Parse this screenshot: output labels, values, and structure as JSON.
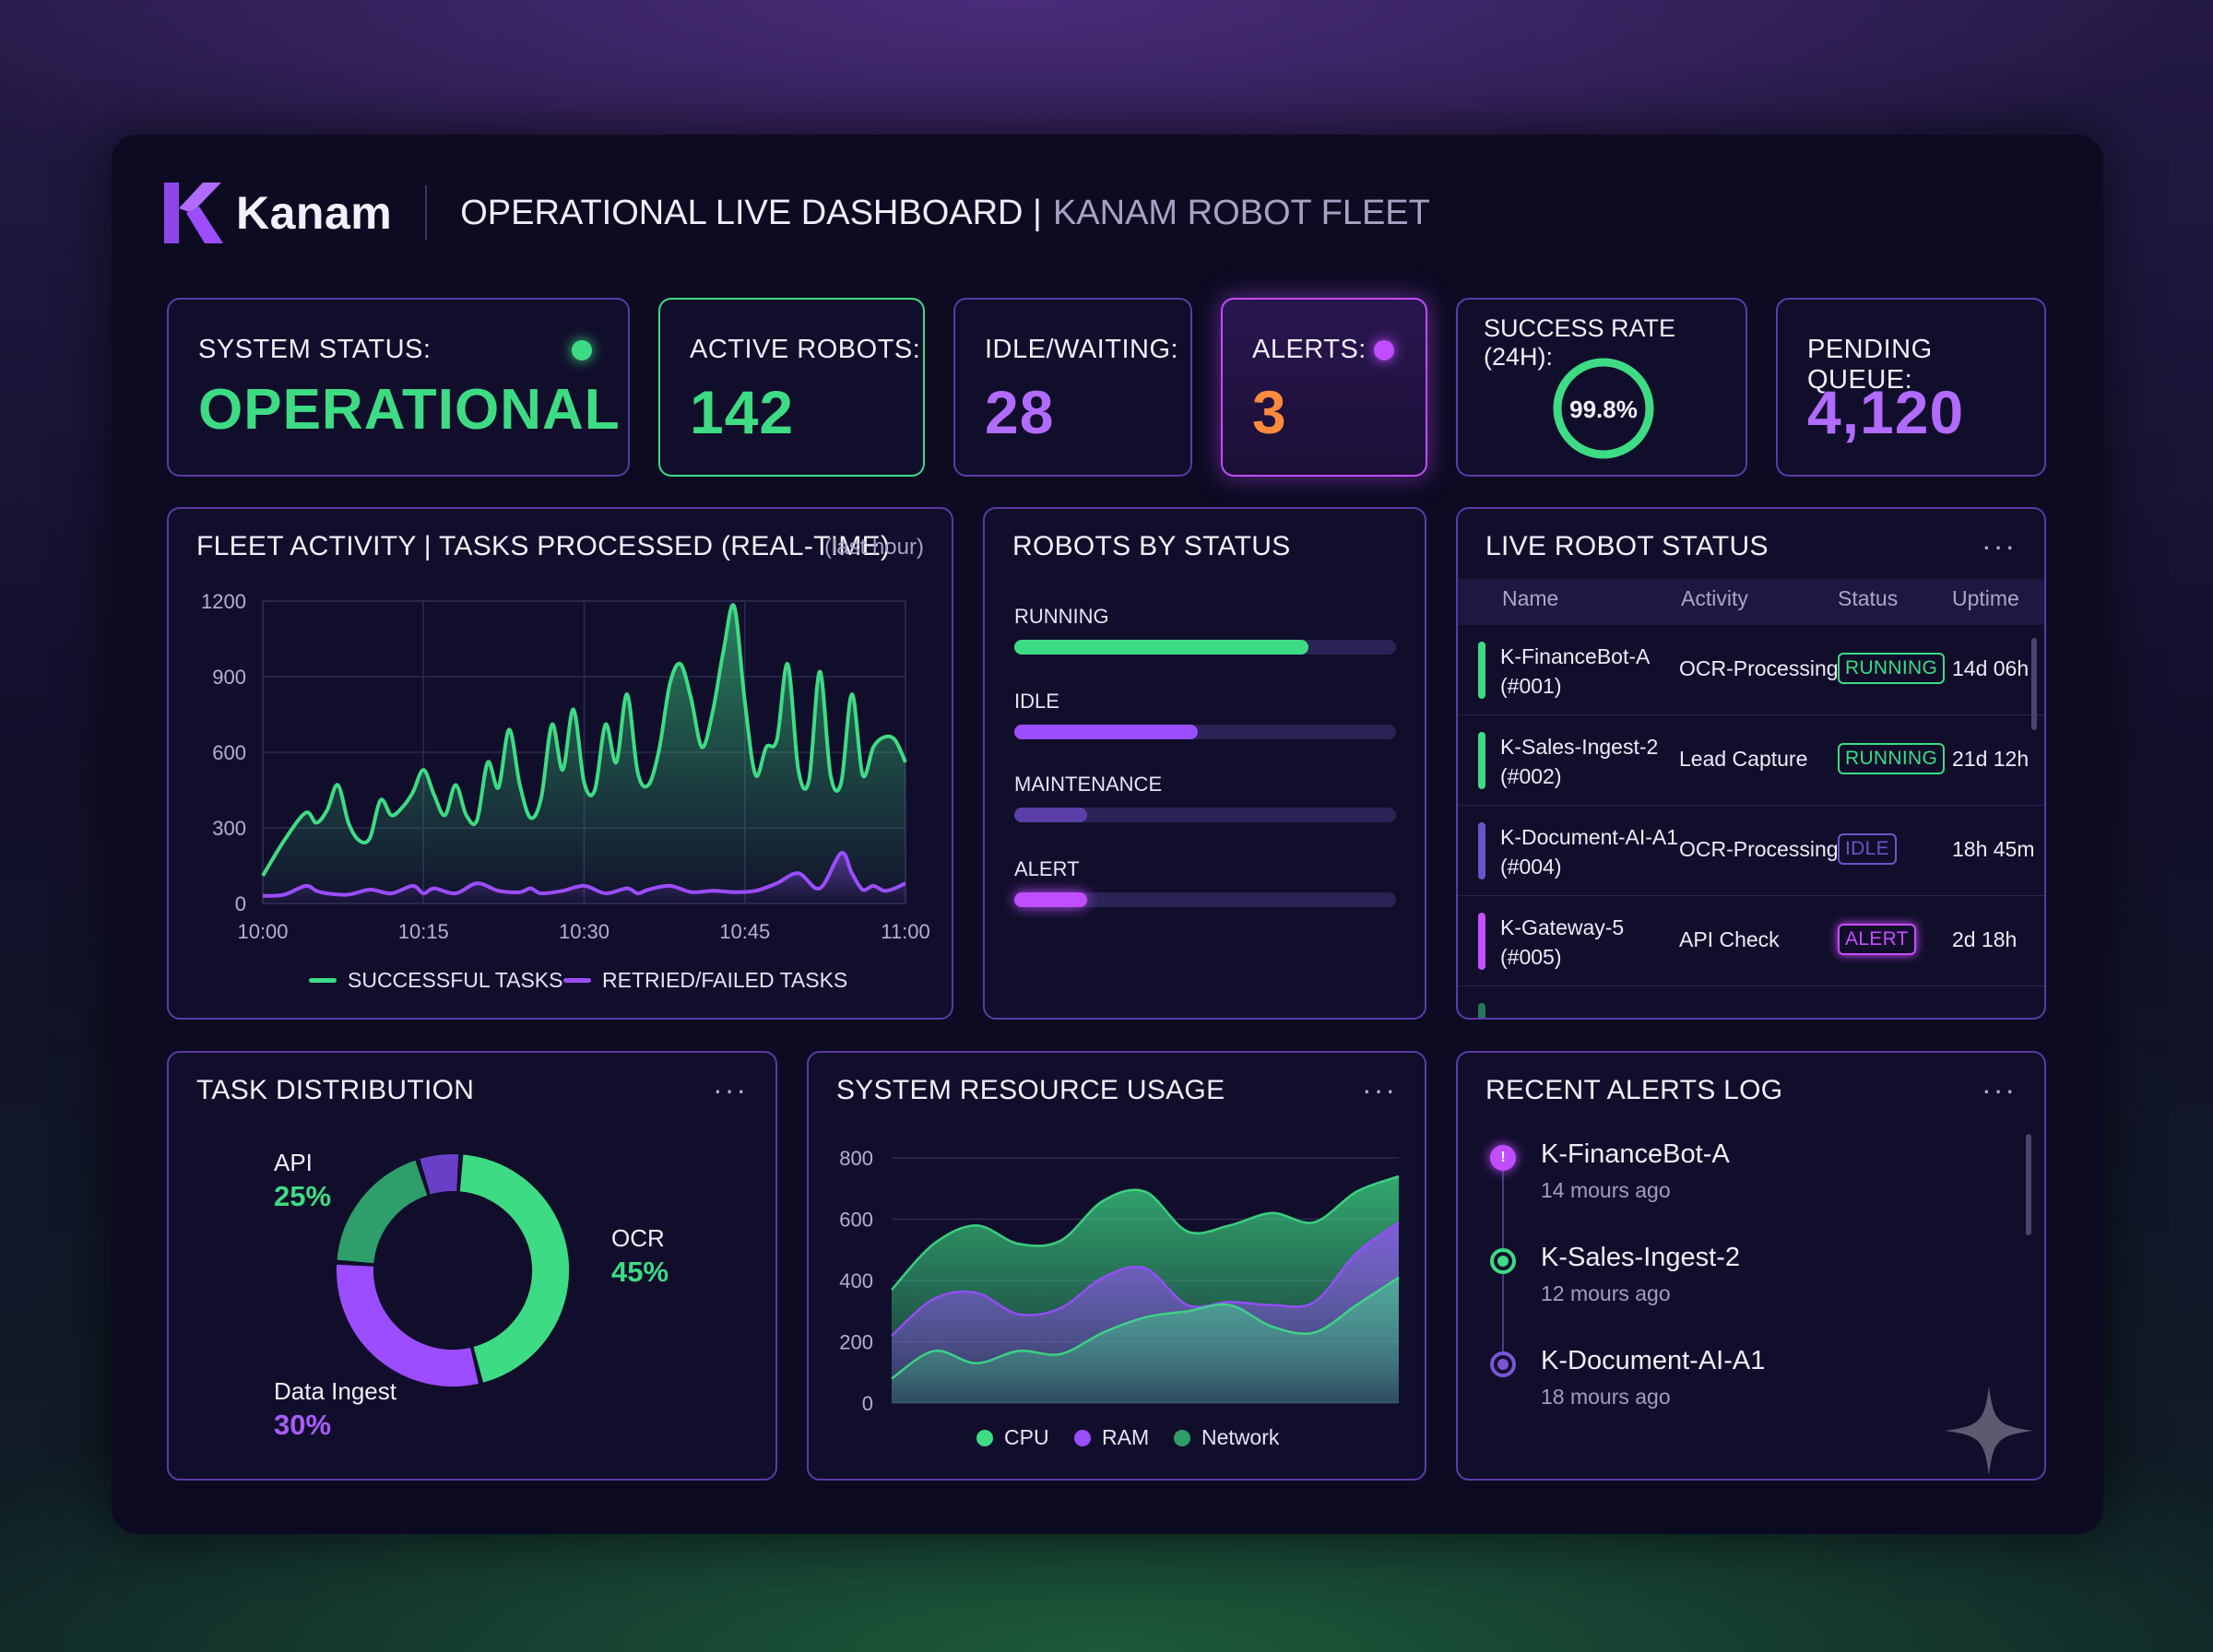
{
  "brand": {
    "name": "Kanam",
    "title_main": "OPERATIONAL LIVE DASHBOARD |",
    "title_sub": "KANAM ROBOT FLEET"
  },
  "kpis": {
    "system_status": {
      "label": "SYSTEM STATUS:",
      "value": "OPERATIONAL",
      "color": "#3ddc84"
    },
    "active_robots": {
      "label": "ACTIVE ROBOTS:",
      "value": "142",
      "color": "#3ddc84"
    },
    "idle": {
      "label": "IDLE/WAITING:",
      "value": "28",
      "color": "#b26bff"
    },
    "alerts": {
      "label": "ALERTS:",
      "value": "3",
      "color": "#ff8a3d"
    },
    "success": {
      "label": "SUCCESS RATE (24H):",
      "value": "99.8%",
      "fraction": 0.998
    },
    "pending": {
      "label": "PENDING QUEUE:",
      "value": "4,120",
      "color": "#b26bff"
    }
  },
  "fleet": {
    "title": "FLEET ACTIVITY | TASKS PROCESSED (REAL-TIME)",
    "note": "(last hour)",
    "legend_success": "SUCCESSFUL TASKS",
    "legend_failed": "RETRIED/FAILED TASKS"
  },
  "robots_by_status": {
    "title": "ROBOTS BY STATUS",
    "bars": [
      {
        "label": "RUNNING",
        "fraction": 0.77,
        "color": "#3ddc84"
      },
      {
        "label": "IDLE",
        "fraction": 0.48,
        "color": "#9b4dff"
      },
      {
        "label": "MAINTENANCE",
        "fraction": 0.19,
        "color": "#5b3fa8"
      },
      {
        "label": "ALERT",
        "fraction": 0.19,
        "color": "#c04dff"
      }
    ]
  },
  "live": {
    "title": "LIVE ROBOT STATUS",
    "more": "···",
    "headers": {
      "name": "Name",
      "activity": "Activity",
      "status": "Status",
      "uptime": "Uptime"
    },
    "rows": [
      {
        "name1": "K-FinanceBot-A",
        "name2": "(#001)",
        "activity": "OCR-Processing",
        "status": "RUNNING",
        "uptime": "14d 06h",
        "color": "#3ddc84"
      },
      {
        "name1": "K-Sales-Ingest-2",
        "name2": "(#002)",
        "activity": "Lead Capture",
        "status": "RUNNING",
        "uptime": "21d 12h",
        "color": "#3ddc84"
      },
      {
        "name1": "K-Document-AI-A1",
        "name2": "(#004)",
        "activity": "OCR-Processing",
        "status": "IDLE",
        "uptime": "18h 45m",
        "color": "#6a55c8"
      },
      {
        "name1": "K-Gateway-5",
        "name2": "(#005)",
        "activity": "API Check",
        "status": "ALERT",
        "uptime": "2d 18h",
        "color": "#c84dff"
      }
    ]
  },
  "task_dist": {
    "title": "TASK DISTRIBUTION",
    "more": "···",
    "slices": [
      {
        "label": "OCR",
        "value": 45,
        "pct": "45%",
        "color": "#3ddc84"
      },
      {
        "label": "Data Ingest",
        "value": 30,
        "pct": "30%",
        "color": "#9b4dff"
      },
      {
        "label": "API",
        "value": 25,
        "pct": "25%",
        "color": "#3ddc84"
      }
    ]
  },
  "resource": {
    "title": "SYSTEM RESOURCE USAGE",
    "more": "···",
    "legend": [
      "CPU",
      "RAM",
      "Network"
    ]
  },
  "alerts_log": {
    "title": "RECENT ALERTS LOG",
    "more": "···",
    "items": [
      {
        "name": "K-FinanceBot-A",
        "time": "14 mours ago",
        "color": "#c04dff"
      },
      {
        "name": "K-Sales-Ingest-2",
        "time": "12 mours ago",
        "color": "#3ddc84"
      },
      {
        "name": "K-Document-AI-A1",
        "time": "18 mours ago",
        "color": "#7a55d8"
      }
    ]
  },
  "chart_data": [
    {
      "type": "area",
      "title": "FLEET ACTIVITY | TASKS PROCESSED (REAL-TIME)",
      "xlabel": "",
      "ylabel": "",
      "xlim": [
        0,
        60
      ],
      "ylim": [
        0,
        1200
      ],
      "x_ticks": [
        "10:00",
        "10:15",
        "10:30",
        "10:45",
        "11:00"
      ],
      "y_ticks": [
        "0",
        "300",
        "600",
        "900",
        "1200"
      ],
      "grid": true,
      "series": [
        {
          "name": "SUCCESSFUL TASKS",
          "color": "#3ddc84",
          "x": [
            0,
            2,
            4,
            5,
            6,
            7,
            8,
            9,
            10,
            11,
            12,
            13,
            14,
            15,
            16,
            17,
            18,
            19,
            20,
            21,
            22,
            23,
            24,
            25,
            26,
            27,
            28,
            29,
            30,
            31,
            32,
            33,
            34,
            35,
            36,
            37,
            38,
            39,
            40,
            41,
            42,
            43,
            44,
            45,
            46,
            47,
            48,
            49,
            50,
            51,
            52,
            53,
            54,
            55,
            56,
            57,
            58,
            59,
            60
          ],
          "y": [
            110,
            250,
            360,
            320,
            370,
            470,
            320,
            250,
            260,
            410,
            350,
            380,
            440,
            530,
            430,
            350,
            470,
            350,
            330,
            560,
            460,
            690,
            470,
            340,
            420,
            710,
            530,
            770,
            480,
            450,
            710,
            560,
            830,
            520,
            470,
            610,
            870,
            950,
            810,
            620,
            760,
            1000,
            1180,
            800,
            510,
            620,
            650,
            950,
            530,
            490,
            920,
            510,
            480,
            830,
            510,
            620,
            660,
            650,
            560
          ]
        },
        {
          "name": "RETRIED/FAILED TASKS",
          "color": "#9b4dff",
          "x": [
            0,
            2,
            4,
            5,
            6,
            8,
            10,
            12,
            14,
            15,
            16,
            18,
            20,
            22,
            24,
            25,
            26,
            28,
            30,
            32,
            34,
            35,
            36,
            38,
            40,
            42,
            44,
            46,
            48,
            50,
            52,
            54,
            55,
            56,
            57,
            58,
            59,
            60
          ],
          "y": [
            30,
            35,
            70,
            50,
            40,
            35,
            55,
            40,
            70,
            40,
            60,
            40,
            80,
            50,
            45,
            60,
            40,
            50,
            70,
            40,
            60,
            40,
            55,
            70,
            45,
            50,
            45,
            50,
            80,
            120,
            60,
            200,
            120,
            55,
            70,
            50,
            60,
            80
          ]
        }
      ]
    },
    {
      "type": "pie",
      "title": "TASK DISTRIBUTION",
      "categories": [
        "OCR",
        "Data Ingest",
        "API"
      ],
      "values": [
        45,
        30,
        25
      ]
    },
    {
      "type": "area",
      "title": "SYSTEM RESOURCE USAGE",
      "xlabel": "",
      "ylabel": "",
      "ylim": [
        0,
        800
      ],
      "y_ticks": [
        "0",
        "200",
        "400",
        "600",
        "800"
      ],
      "x": [
        0,
        1,
        2,
        3,
        4,
        5,
        6,
        7,
        8,
        9,
        10,
        11,
        12
      ],
      "series": [
        {
          "name": "CPU",
          "color": "#3ddc84",
          "values": [
            370,
            520,
            580,
            520,
            530,
            660,
            690,
            560,
            580,
            620,
            590,
            690,
            740
          ]
        },
        {
          "name": "RAM",
          "color": "#9b4dff",
          "values": [
            220,
            340,
            360,
            290,
            310,
            410,
            440,
            320,
            330,
            320,
            330,
            490,
            590
          ]
        },
        {
          "name": "Network",
          "color": "#2e9e6a",
          "values": [
            80,
            170,
            130,
            170,
            160,
            230,
            280,
            300,
            320,
            250,
            230,
            320,
            410
          ]
        }
      ]
    }
  ]
}
